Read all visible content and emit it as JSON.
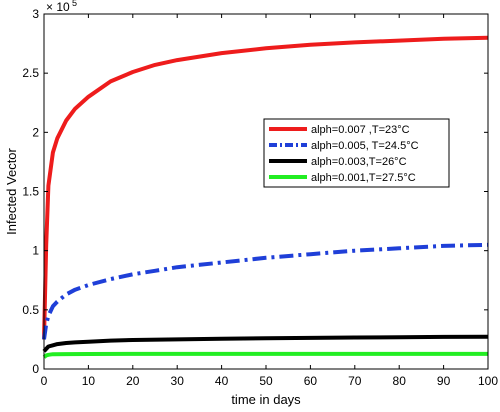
{
  "chart_data": {
    "type": "line",
    "title": "",
    "xlabel": "time in days",
    "ylabel": "Infected Vector",
    "xlim": [
      0,
      100
    ],
    "ylim": [
      0,
      300000
    ],
    "x_ticks": [
      0,
      10,
      20,
      30,
      40,
      50,
      60,
      70,
      80,
      90,
      100
    ],
    "y_ticks": [
      0,
      0.5,
      1,
      1.5,
      2,
      2.5,
      3
    ],
    "y_tick_labels": [
      "0",
      "0.5",
      "1",
      "1.5",
      "2",
      "2.5",
      "3"
    ],
    "y_exponent_label": "× 10",
    "y_exponent_power": "5",
    "grid": false,
    "legend_position": "right",
    "series": [
      {
        "name": "alph=0.007 ,T=23°C",
        "color": "#ee1c1c",
        "style": "solid",
        "x": [
          0,
          0.5,
          1,
          2,
          3,
          5,
          7,
          10,
          15,
          20,
          25,
          30,
          40,
          50,
          60,
          70,
          80,
          90,
          100
        ],
        "y": [
          25000,
          105000,
          155000,
          183000,
          195000,
          210000,
          220000,
          230000,
          243000,
          251000,
          257000,
          261000,
          267000,
          271000,
          274000,
          276000,
          277500,
          279000,
          280000
        ]
      },
      {
        "name": "alph=0.005, T=24.5°C",
        "color": "#1f3fd8",
        "style": "dashdot",
        "x": [
          0,
          0.5,
          1,
          2,
          3,
          5,
          7,
          10,
          15,
          20,
          25,
          30,
          40,
          50,
          60,
          70,
          80,
          90,
          100
        ],
        "y": [
          25000,
          38000,
          45000,
          53000,
          57000,
          63000,
          67000,
          71000,
          76000,
          80000,
          83000,
          86000,
          90000,
          94000,
          97000,
          100000,
          102000,
          104000,
          105000
        ]
      },
      {
        "name": "alph=0.003,T=26°C",
        "color": "#000000",
        "style": "solid",
        "x": [
          0,
          0.5,
          1,
          2,
          3,
          5,
          7,
          10,
          15,
          20,
          30,
          40,
          50,
          60,
          70,
          80,
          90,
          100
        ],
        "y": [
          15000,
          17000,
          19000,
          20000,
          21000,
          22000,
          22500,
          23000,
          24000,
          24500,
          25000,
          25500,
          26000,
          26300,
          26600,
          26900,
          27100,
          27300
        ]
      },
      {
        "name": "alph=0.001,T=27.5°C",
        "color": "#22ee22",
        "style": "solid",
        "x": [
          0,
          0.5,
          1,
          2,
          5,
          10,
          20,
          30,
          40,
          50,
          60,
          70,
          80,
          90,
          100
        ],
        "y": [
          10000,
          11500,
          12000,
          12500,
          12600,
          12700,
          12800,
          12800,
          12800,
          12800,
          12800,
          12800,
          12800,
          12800,
          12800
        ]
      }
    ]
  }
}
